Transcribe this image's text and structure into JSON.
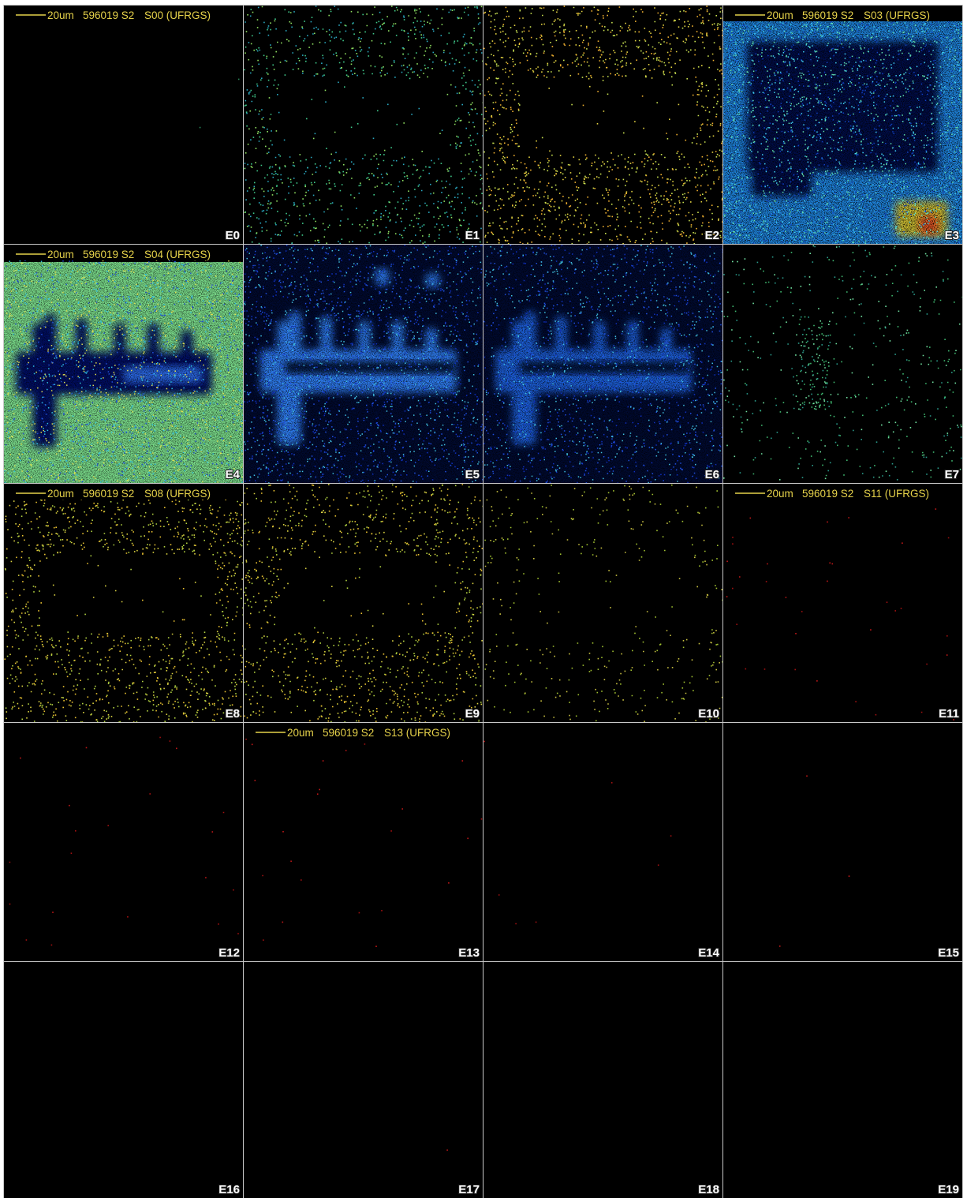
{
  "tiles": [
    {
      "label": "E0",
      "caption": {
        "scale": "20um",
        "sample": "596019 S2",
        "scan": "S00 (UFRGS)"
      }
    },
    {
      "label": "E1"
    },
    {
      "label": "E2"
    },
    {
      "label": "E3",
      "caption": {
        "scale": "20um",
        "sample": "596019 S2",
        "scan": "S03 (UFRGS)"
      }
    },
    {
      "label": "E4",
      "caption": {
        "scale": "20um",
        "sample": "596019 S2",
        "scan": "S04 (UFRGS)"
      }
    },
    {
      "label": "E5"
    },
    {
      "label": "E6"
    },
    {
      "label": "E7"
    },
    {
      "label": "E8",
      "caption": {
        "scale": "20um",
        "sample": "596019 S2",
        "scan": "S08 (UFRGS)"
      }
    },
    {
      "label": "E9"
    },
    {
      "label": "E10"
    },
    {
      "label": "E11",
      "caption": {
        "scale": "20um",
        "sample": "596019 S2",
        "scan": "S11 (UFRGS)"
      }
    },
    {
      "label": "E12"
    },
    {
      "label": "E13",
      "caption": {
        "scale": "20um",
        "sample": "596019 S2",
        "scan": "S13 (UFRGS)"
      }
    },
    {
      "label": "E14"
    },
    {
      "label": "E15"
    },
    {
      "label": "E16"
    },
    {
      "label": "E17"
    },
    {
      "label": "E18"
    },
    {
      "label": "E19"
    }
  ]
}
